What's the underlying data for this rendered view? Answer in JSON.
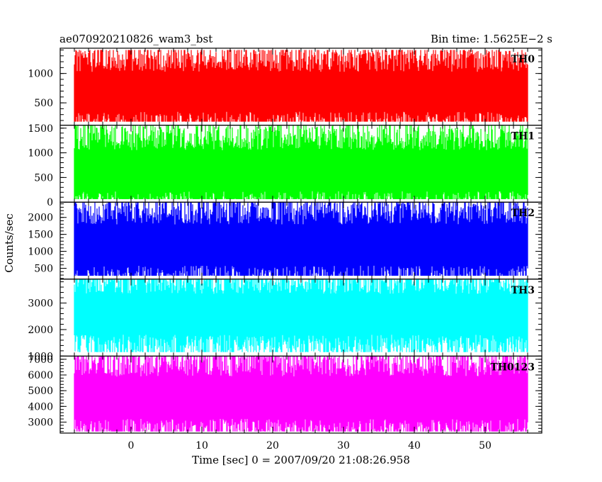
{
  "header": {
    "left_title": "ae070920210826_wam3_bst",
    "right_title": "Bin time: 1.5625E−2 s"
  },
  "chart_data": {
    "type": "line",
    "xlabel": "Time [sec] 0 = 2007/09/20 21:08:26.958",
    "ylabel": "Counts/sec",
    "xlim": [
      -10,
      58
    ],
    "data_x_range": [
      -8,
      56
    ],
    "x_ticks": [
      0,
      10,
      20,
      30,
      40,
      50
    ],
    "x_tick_labels": [
      "0",
      "10",
      "20",
      "30",
      "40",
      "50"
    ],
    "bin_time": 0.015625,
    "grid": false,
    "series": [
      {
        "name": "TH0",
        "color": "#ff0000",
        "ylim": [
          120,
          1430
        ],
        "y_ticks": [
          500,
          1000
        ],
        "y_tick_labels": [
          "500",
          "1000"
        ],
        "mean": 700,
        "min": 180,
        "max": 1400
      },
      {
        "name": "TH1",
        "color": "#00ff00",
        "ylim": [
          0,
          1560
        ],
        "y_ticks": [
          0,
          500,
          1000,
          1500
        ],
        "y_tick_labels": [
          "0",
          "500",
          "1000",
          "1500"
        ],
        "mean": 650,
        "min": 60,
        "max": 1550
      },
      {
        "name": "TH2",
        "color": "#0000ff",
        "ylim": [
          180,
          2450
        ],
        "y_ticks": [
          500,
          1000,
          1500,
          2000
        ],
        "y_tick_labels": [
          "500",
          "1000",
          "1500",
          "2000"
        ],
        "mean": 1200,
        "min": 280,
        "max": 2450
      },
      {
        "name": "TH3",
        "color": "#00ffff",
        "ylim": [
          1000,
          3900
        ],
        "y_ticks": [
          1000,
          2000,
          3000
        ],
        "y_tick_labels": [
          "1000",
          "2000",
          "3000"
        ],
        "mean": 2600,
        "min": 1150,
        "max": 3900
      },
      {
        "name": "TH0123",
        "color": "#ff00ff",
        "ylim": [
          2300,
          7200
        ],
        "y_ticks": [
          3000,
          4000,
          5000,
          6000,
          7000
        ],
        "y_tick_labels": [
          "3000",
          "4000",
          "5000",
          "6000",
          "7000"
        ],
        "mean": 4600,
        "min": 2400,
        "max": 7200
      }
    ]
  }
}
